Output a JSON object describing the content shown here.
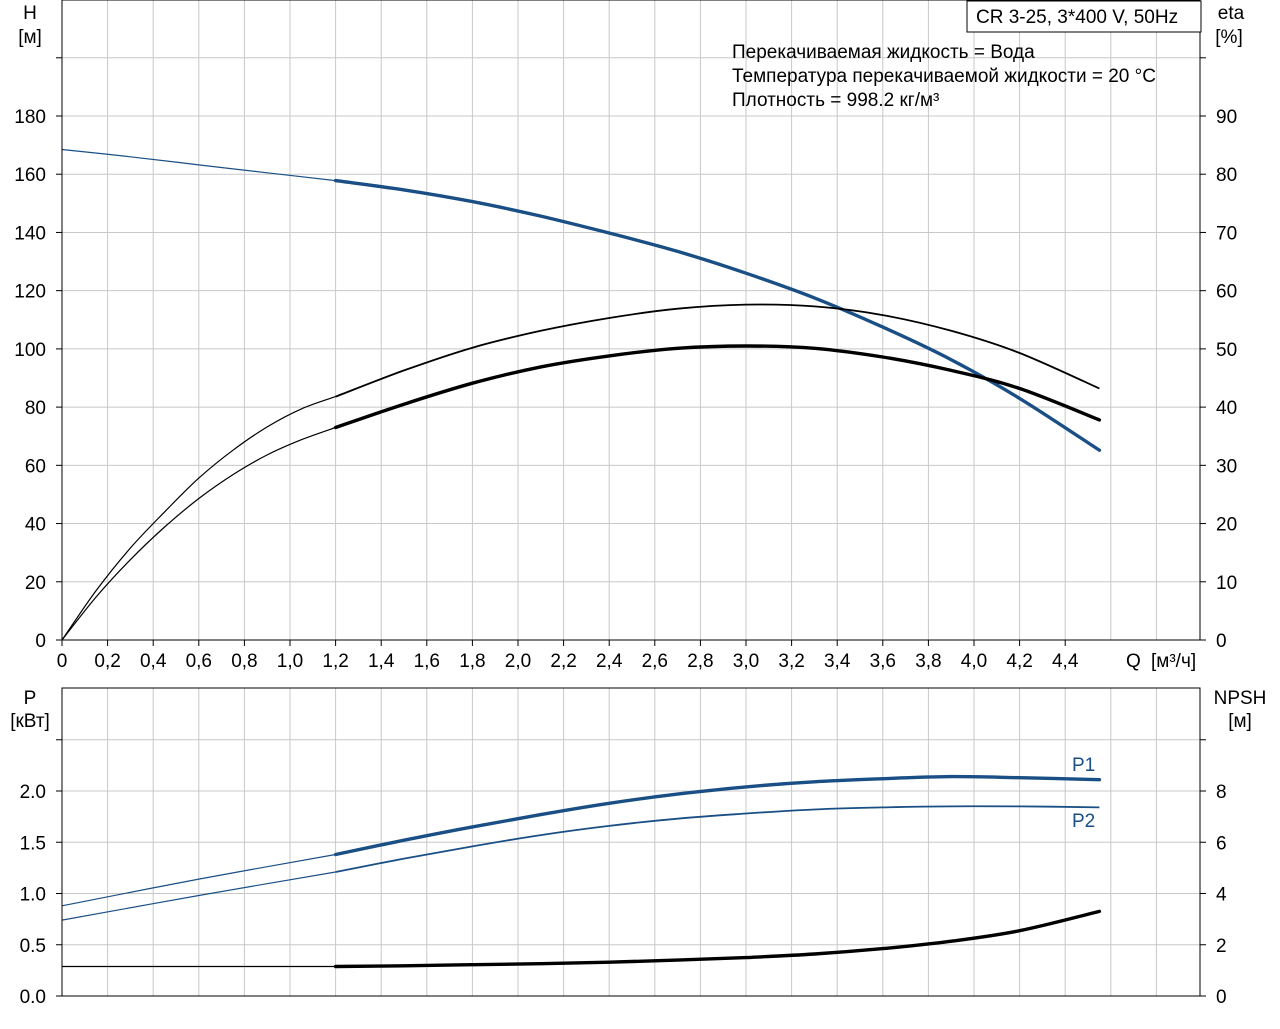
{
  "header": {
    "model_label": "CR 3-25, 3*400 V, 50Hz"
  },
  "info": {
    "liquid": "Перекачиваемая жидкость = Вода",
    "temperature": "Температура перекачиваемой жидкости = 20 °C",
    "density": "Плотность = 998.2 кг/м³"
  },
  "colors": {
    "blue": "#1a4f86",
    "black": "#000000",
    "grid": "#c8c8c8",
    "axis": "#000000"
  },
  "chart_data": [
    {
      "type": "line",
      "panel": "top",
      "title": "",
      "xlabel": "Q [м³/ч]",
      "xlabel_parts": [
        "Q",
        "[м³/ч]"
      ],
      "ylabel_left": [
        "H",
        "[м]"
      ],
      "ylabel_right": [
        "eta",
        "[%]"
      ],
      "xlim": [
        0,
        5.9
      ],
      "ylim_left": [
        0,
        180
      ],
      "ylim_right": [
        0,
        90
      ],
      "grid": true,
      "x_ticks": [
        "0",
        "0,2",
        "0,4",
        "0,6",
        "0,8",
        "1,0",
        "1,2",
        "1,4",
        "1,6",
        "1,8",
        "2,0",
        "2,2",
        "2,4",
        "2,6",
        "2,8",
        "3,0",
        "3,2",
        "3,4",
        "3,6",
        "3,8",
        "4,0",
        "4,2",
        "4,4"
      ],
      "x_tick_values": [
        0,
        0.2,
        0.4,
        0.6,
        0.8,
        1.0,
        1.2,
        1.4,
        1.6,
        1.8,
        2.0,
        2.2,
        2.4,
        2.6,
        2.8,
        3.0,
        3.2,
        3.4,
        3.6,
        3.8,
        4.0,
        4.2,
        4.4
      ],
      "y_left_ticks": [
        "0",
        "20",
        "40",
        "60",
        "80",
        "100",
        "120",
        "140",
        "160",
        "180"
      ],
      "y_left_values": [
        0,
        20,
        40,
        60,
        80,
        100,
        120,
        140,
        160,
        180
      ],
      "y_right_ticks": [
        "0",
        "10",
        "20",
        "30",
        "40",
        "50",
        "60",
        "70",
        "80",
        "90"
      ],
      "y_right_values": [
        0,
        10,
        20,
        30,
        40,
        50,
        60,
        70,
        80,
        90
      ],
      "series": [
        {
          "id": "H",
          "axis": "left",
          "color": "blue",
          "x_thin": [
            0,
            0.3,
            0.6,
            0.9,
            1.2
          ],
          "y_thin": [
            168.5,
            166.0,
            163.2,
            160.5,
            157.8
          ],
          "x": [
            1.2,
            1.5,
            1.8,
            2.1,
            2.4,
            2.7,
            3.0,
            3.3,
            3.6,
            3.9,
            4.2,
            4.55
          ],
          "y": [
            157.8,
            154.6,
            150.6,
            145.6,
            139.8,
            133.5,
            126.0,
            117.5,
            107.5,
            96.3,
            83.0,
            65.2
          ]
        },
        {
          "id": "eta_upper",
          "axis": "right",
          "color": "black",
          "x_thin": [
            0,
            0.15,
            0.3,
            0.45,
            0.6,
            0.75,
            0.9,
            1.05,
            1.2
          ],
          "y_thin": [
            0,
            8.5,
            15.8,
            22.0,
            27.8,
            32.6,
            36.6,
            39.7,
            41.8
          ],
          "x_thin2": [
            1.2,
            1.5,
            1.8,
            2.1,
            2.4,
            2.7,
            3.0,
            3.3,
            3.6,
            3.9,
            4.2,
            4.55
          ],
          "y_thin2": [
            41.8,
            46.3,
            50.2,
            53.1,
            55.3,
            56.9,
            57.6,
            57.3,
            55.8,
            53.1,
            49.3,
            43.2
          ]
        },
        {
          "id": "eta_lower",
          "axis": "right",
          "color": "black",
          "x_thin": [
            0,
            0.15,
            0.3,
            0.45,
            0.6,
            0.75,
            0.9,
            1.05,
            1.2
          ],
          "y_thin": [
            0,
            7.4,
            13.8,
            19.4,
            24.3,
            28.4,
            31.8,
            34.4,
            36.5
          ],
          "x": [
            1.2,
            1.5,
            1.8,
            2.1,
            2.4,
            2.7,
            3.0,
            3.3,
            3.6,
            3.9,
            4.2,
            4.55
          ],
          "y": [
            36.5,
            40.5,
            44.1,
            46.9,
            48.8,
            50.1,
            50.5,
            50.1,
            48.6,
            46.3,
            43.2,
            37.8
          ]
        }
      ]
    },
    {
      "type": "line",
      "panel": "bottom",
      "title": "",
      "ylabel_left": [
        "P",
        "[кВт]"
      ],
      "ylabel_right": [
        "NPSH",
        "[м]"
      ],
      "xlim": [
        0,
        5.9
      ],
      "ylim_left": [
        0,
        2.0
      ],
      "ylim_right": [
        0,
        8
      ],
      "grid": true,
      "y_left_ticks": [
        "0.0",
        "0.5",
        "1.0",
        "1.5",
        "2.0"
      ],
      "y_left_values": [
        0,
        0.5,
        1.0,
        1.5,
        2.0
      ],
      "y_right_ticks": [
        "0",
        "2",
        "4",
        "6",
        "8"
      ],
      "y_right_values": [
        0,
        2,
        4,
        6,
        8
      ],
      "series": [
        {
          "id": "P1",
          "name": "P1",
          "axis": "left",
          "color": "blue",
          "x_thin": [
            0,
            0.6,
            1.2
          ],
          "y_thin": [
            0.88,
            1.14,
            1.38
          ],
          "x": [
            1.2,
            1.5,
            1.8,
            2.1,
            2.4,
            2.7,
            3.0,
            3.3,
            3.6,
            3.9,
            4.2,
            4.55
          ],
          "y": [
            1.38,
            1.52,
            1.65,
            1.77,
            1.88,
            1.97,
            2.04,
            2.09,
            2.12,
            2.14,
            2.13,
            2.11
          ]
        },
        {
          "id": "P2",
          "name": "P2",
          "axis": "left",
          "color": "blue",
          "x_thin": [
            0,
            0.6,
            1.2
          ],
          "y_thin": [
            0.74,
            0.98,
            1.21
          ],
          "x_thin2": [
            1.2,
            1.5,
            1.8,
            2.1,
            2.4,
            2.7,
            3.0,
            3.3,
            3.6,
            3.9,
            4.2,
            4.55
          ],
          "y_thin2": [
            1.21,
            1.34,
            1.46,
            1.57,
            1.66,
            1.73,
            1.78,
            1.82,
            1.84,
            1.85,
            1.85,
            1.84
          ]
        },
        {
          "id": "NPSH",
          "axis": "right",
          "color": "black",
          "x_thin": [
            0,
            0.6,
            1.2
          ],
          "y_thin": [
            1.15,
            1.15,
            1.15
          ],
          "x": [
            1.2,
            1.5,
            1.8,
            2.1,
            2.4,
            2.7,
            3.0,
            3.3,
            3.6,
            3.9,
            4.2,
            4.55
          ],
          "y": [
            1.15,
            1.18,
            1.22,
            1.26,
            1.32,
            1.4,
            1.5,
            1.64,
            1.85,
            2.14,
            2.55,
            3.3
          ]
        }
      ]
    }
  ]
}
